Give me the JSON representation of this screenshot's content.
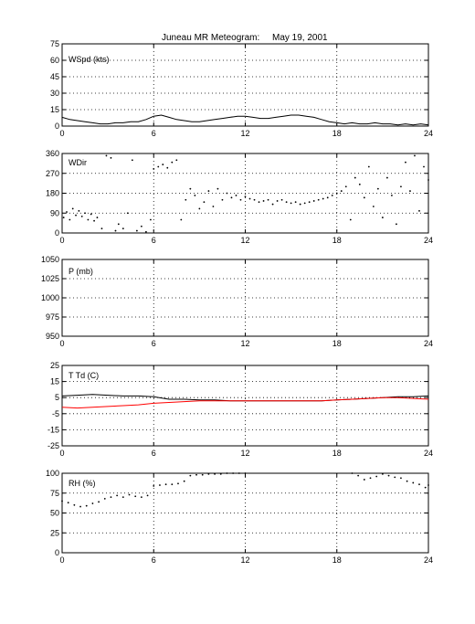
{
  "figure": {
    "title_station": "Juneau MR Meteogram:",
    "title_date": "May 19, 2001"
  },
  "colors": {
    "black": "#000000",
    "red": "#ff0000"
  },
  "chart_data": [
    {
      "type": "line",
      "label": "WSpd (kts)",
      "xlim": [
        0,
        24
      ],
      "ylim": [
        0,
        75
      ],
      "xticks": [
        0,
        6,
        12,
        18,
        24
      ],
      "yticks": [
        0,
        15,
        30,
        45,
        60,
        75
      ],
      "grid": true,
      "series": [
        {
          "style": "line",
          "color": "#000000",
          "x": [
            0,
            0.5,
            1,
            1.5,
            2,
            2.5,
            3,
            3.5,
            4,
            4.5,
            5,
            5.5,
            6,
            6.5,
            7,
            7.5,
            8,
            8.5,
            9,
            9.5,
            10,
            10.5,
            11,
            11.5,
            12,
            12.5,
            13,
            13.5,
            14,
            14.5,
            15,
            15.5,
            16,
            16.5,
            17,
            17.5,
            18,
            18.5,
            19,
            19.5,
            20,
            20.5,
            21,
            21.5,
            22,
            22.5,
            23,
            23.5,
            24
          ],
          "y": [
            8,
            6,
            5,
            4,
            3,
            2,
            2,
            3,
            3,
            4,
            4,
            6,
            9,
            10,
            8,
            6,
            5,
            4,
            4,
            5,
            6,
            7,
            8,
            9,
            9,
            8,
            7,
            7,
            8,
            9,
            10,
            10,
            9,
            8,
            6,
            4,
            3,
            2,
            3,
            2,
            2,
            3,
            2,
            2,
            1,
            2,
            1,
            2,
            1
          ]
        }
      ]
    },
    {
      "type": "scatter",
      "label": "WDir",
      "xlim": [
        0,
        24
      ],
      "ylim": [
        0,
        360
      ],
      "xticks": [
        0,
        6,
        12,
        18,
        24
      ],
      "yticks": [
        0,
        90,
        180,
        270,
        360
      ],
      "grid": true,
      "series": [
        {
          "style": "dots",
          "color": "#000000",
          "x": [
            0.1,
            0.3,
            0.5,
            0.7,
            0.9,
            1.1,
            1.3,
            1.5,
            1.7,
            1.9,
            2.1,
            2.3,
            2.6,
            2.9,
            3.2,
            3.5,
            3.7,
            4.0,
            4.3,
            4.6,
            4.9,
            5.2,
            5.5,
            5.8,
            6.0,
            6.3,
            6.6,
            6.9,
            7.2,
            7.5,
            7.8,
            8.1,
            8.4,
            8.7,
            9.0,
            9.3,
            9.6,
            9.9,
            10.2,
            10.5,
            10.8,
            11.1,
            11.4,
            11.7,
            12.0,
            12.3,
            12.6,
            12.9,
            13.2,
            13.5,
            13.8,
            14.1,
            14.4,
            14.7,
            15.0,
            15.3,
            15.6,
            15.9,
            16.2,
            16.5,
            16.8,
            17.1,
            17.4,
            17.7,
            18.0,
            18.3,
            18.6,
            18.9,
            19.2,
            19.5,
            19.8,
            20.1,
            20.4,
            20.7,
            21.0,
            21.3,
            21.6,
            21.9,
            22.2,
            22.5,
            22.8,
            23.1,
            23.4,
            23.7,
            24.0
          ],
          "y": [
            70,
            95,
            60,
            110,
            80,
            100,
            75,
            90,
            60,
            85,
            55,
            70,
            20,
            350,
            340,
            10,
            40,
            20,
            90,
            330,
            10,
            30,
            5,
            60,
            290,
            300,
            310,
            295,
            320,
            330,
            60,
            150,
            200,
            170,
            110,
            140,
            190,
            120,
            200,
            150,
            180,
            160,
            170,
            150,
            165,
            155,
            150,
            140,
            145,
            150,
            130,
            145,
            150,
            140,
            135,
            140,
            130,
            135,
            140,
            145,
            150,
            155,
            160,
            170,
            180,
            190,
            210,
            60,
            250,
            220,
            160,
            300,
            120,
            200,
            70,
            250,
            170,
            40,
            210,
            320,
            190,
            350,
            100,
            300,
            240
          ]
        }
      ]
    },
    {
      "type": "line",
      "label": "P (mb)",
      "xlim": [
        0,
        24
      ],
      "ylim": [
        950,
        1050
      ],
      "xticks": [
        0,
        6,
        12,
        18,
        24
      ],
      "yticks": [
        950,
        975,
        1000,
        1025,
        1050
      ],
      "grid": true,
      "series": []
    },
    {
      "type": "line",
      "label": "T Td (C)",
      "xlim": [
        0,
        24
      ],
      "ylim": [
        -25,
        25
      ],
      "xticks": [
        0,
        6,
        12,
        18,
        24
      ],
      "yticks": [
        -25,
        -15,
        -5,
        5,
        15,
        25
      ],
      "grid": true,
      "series": [
        {
          "style": "line",
          "color": "#000000",
          "x": [
            0,
            1,
            2,
            3,
            4,
            5,
            6,
            7,
            8,
            9,
            10,
            11,
            12,
            13,
            14,
            15,
            16,
            17,
            18,
            19,
            20,
            21,
            22,
            23,
            24
          ],
          "y": [
            6,
            6.5,
            7,
            6.5,
            6,
            6,
            5.5,
            4,
            4,
            3.5,
            3.5,
            3,
            3,
            3,
            3,
            3,
            3,
            3,
            3.5,
            4,
            4.5,
            5,
            5.5,
            5.5,
            6
          ]
        },
        {
          "style": "line",
          "color": "#ff0000",
          "x": [
            0,
            1,
            2,
            3,
            4,
            5,
            6,
            7,
            8,
            9,
            10,
            11,
            12,
            13,
            14,
            15,
            16,
            17,
            18,
            19,
            20,
            21,
            22,
            23,
            24
          ],
          "y": [
            -1,
            -1.5,
            -1,
            -0.5,
            0,
            0.5,
            1.5,
            2,
            2.5,
            3,
            3,
            3,
            3,
            3,
            3,
            3,
            3,
            3,
            3.5,
            4,
            4.5,
            5,
            5,
            4.5,
            4
          ]
        }
      ]
    },
    {
      "type": "scatter",
      "label": "RH (%)",
      "xlim": [
        0,
        24
      ],
      "ylim": [
        0,
        100
      ],
      "xticks": [
        0,
        6,
        12,
        18,
        24
      ],
      "yticks": [
        0,
        25,
        50,
        75,
        100
      ],
      "grid": true,
      "series": [
        {
          "style": "dots",
          "color": "#000000",
          "x": [
            0,
            0.4,
            0.8,
            1.2,
            1.6,
            2.0,
            2.4,
            2.8,
            3.2,
            3.6,
            4.0,
            4.4,
            4.8,
            5.2,
            5.6,
            6.0,
            6.4,
            6.8,
            7.2,
            7.6,
            8.0,
            8.4,
            8.8,
            9.2,
            9.6,
            10.0,
            10.4,
            10.8,
            11.2,
            11.6,
            12.0,
            19.0,
            19.4,
            19.8,
            20.2,
            20.6,
            21.0,
            21.4,
            21.8,
            22.2,
            22.6,
            23.0,
            23.4,
            23.8,
            24.0
          ],
          "y": [
            65,
            63,
            60,
            58,
            59,
            62,
            64,
            68,
            70,
            72,
            70,
            73,
            71,
            70,
            72,
            84,
            85,
            86,
            86,
            87,
            90,
            97,
            98,
            98,
            99,
            99,
            99,
            100,
            100,
            100,
            100,
            100,
            97,
            92,
            94,
            96,
            99,
            97,
            95,
            94,
            90,
            88,
            86,
            82,
            85
          ]
        }
      ]
    }
  ]
}
